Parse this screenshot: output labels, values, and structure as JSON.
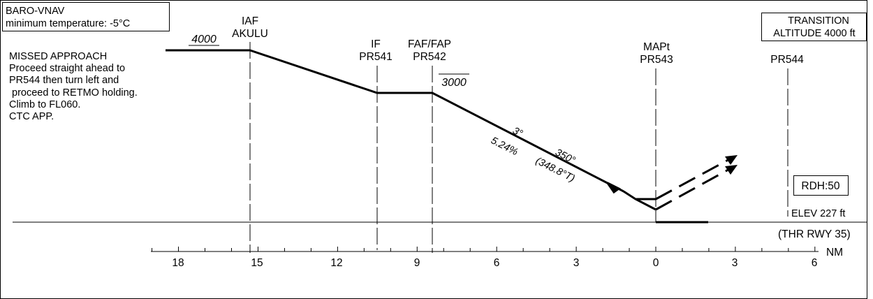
{
  "baro_box": {
    "line1": "BARO-VNAV",
    "line2": "minimum temperature: -5°C"
  },
  "transition_box": {
    "line1": "TRANSITION",
    "line2": "ALTITUDE 4000 ft"
  },
  "missed_approach": [
    "MISSED APPROACH",
    "Proceed straight ahead to",
    "PR544 then turn left and",
    " proceed to RETMO holding.",
    "Climb to FL060.",
    "CTC APP."
  ],
  "fixes": [
    {
      "name": "IAF",
      "id": "AKULU",
      "nm": 15.3
    },
    {
      "name": "IF",
      "id": "PR541",
      "nm": 10.5
    },
    {
      "name": "FAF/FAP",
      "id": "PR542",
      "nm": 8.4
    },
    {
      "name": "MAPt",
      "id": "PR543",
      "nm": 0
    },
    {
      "name": "",
      "id": "PR544",
      "nm": 5
    }
  ],
  "altitudes": {
    "initial": "4000",
    "final": "3000"
  },
  "descent": {
    "angle": "3°",
    "gradient": "5.24%",
    "course": "350°",
    "true_course": "(348.8°T)"
  },
  "rdh": "RDH:50",
  "elev": "ELEV 227 ft",
  "threshold": "(THR RWY 35)",
  "axis": {
    "unit": "NM",
    "labels": [
      "18",
      "15",
      "12",
      "9",
      "6",
      "3",
      "0",
      "3",
      "6"
    ]
  }
}
